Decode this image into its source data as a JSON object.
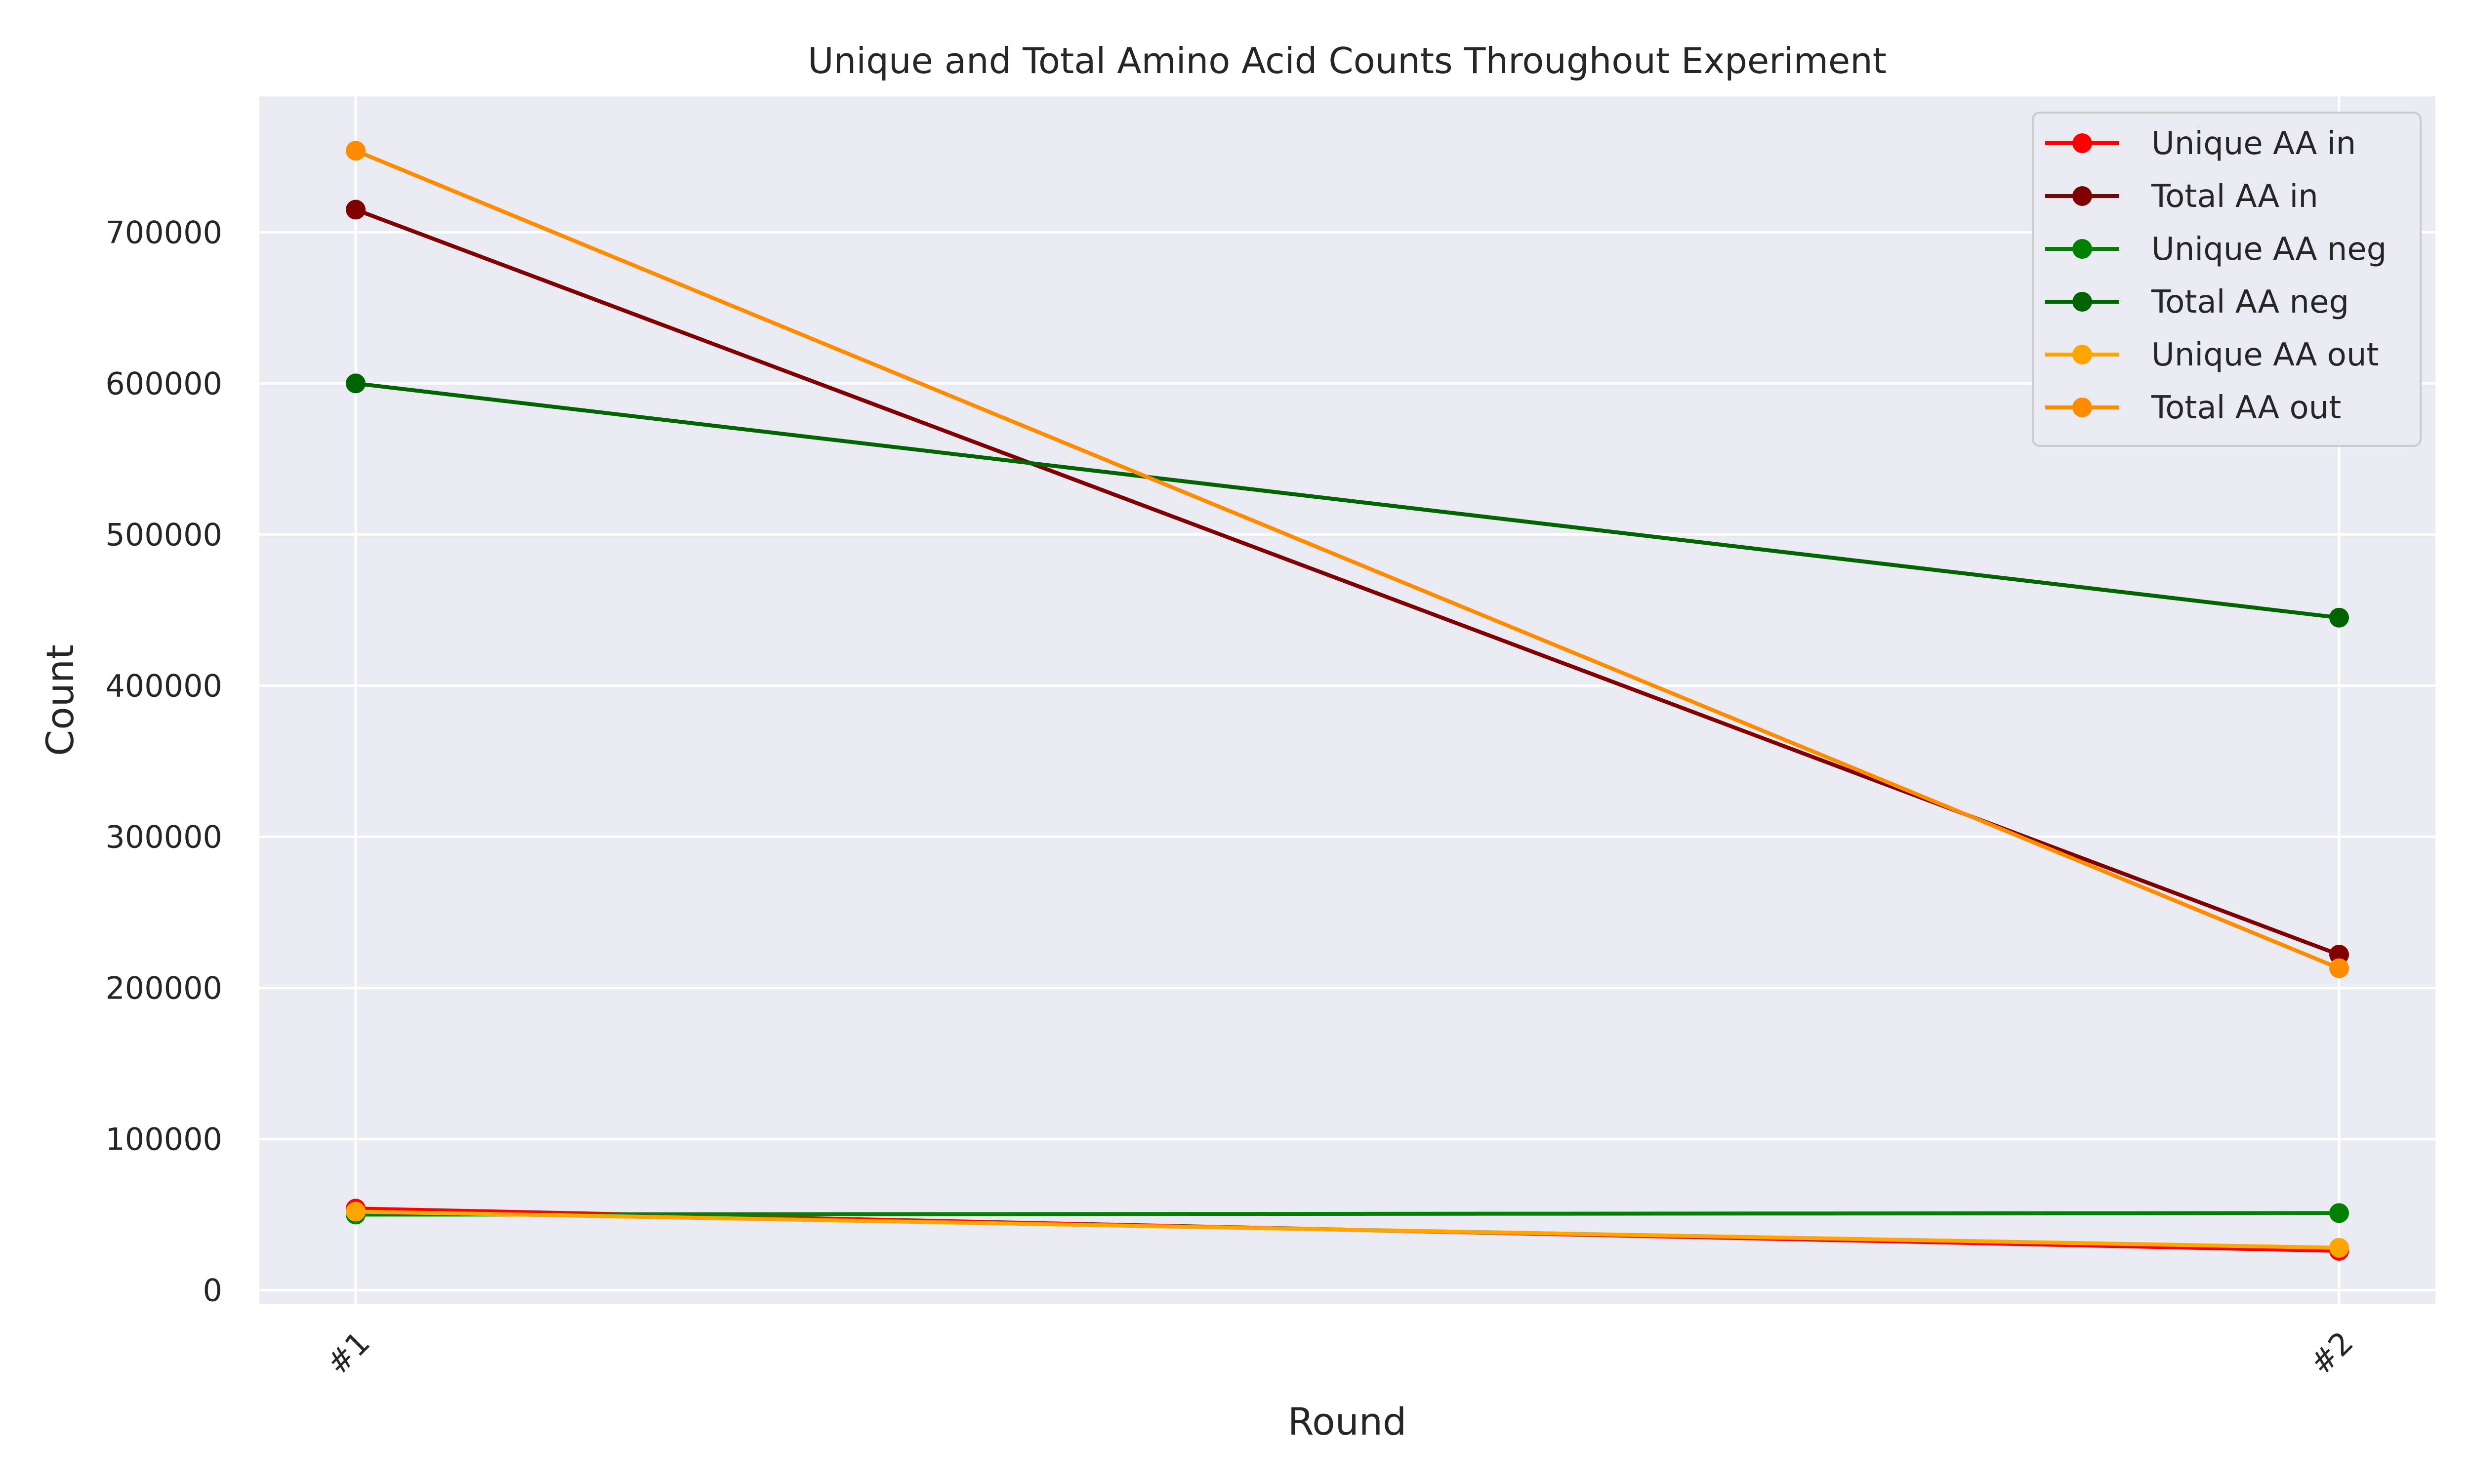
{
  "chart_data": {
    "type": "line",
    "title": "Unique and Total Amino Acid Counts Throughout Experiment",
    "xlabel": "Round",
    "ylabel": "Count",
    "categories": [
      "#1",
      "#2"
    ],
    "ylim": [
      -9000,
      790000
    ],
    "yticks": [
      0,
      100000,
      200000,
      300000,
      400000,
      500000,
      600000,
      700000
    ],
    "ytick_labels": [
      "0",
      "100000",
      "200000",
      "300000",
      "400000",
      "500000",
      "600000",
      "700000"
    ],
    "grid": true,
    "legend_position": "top-right",
    "background_color": "#eaeaf2",
    "grid_color": "#ffffff",
    "series": [
      {
        "name": "Unique AA in",
        "color": "#ff0000",
        "values": [
          54000,
          26000
        ]
      },
      {
        "name": "Total AA in",
        "color": "#800000",
        "values": [
          715000,
          222000
        ]
      },
      {
        "name": "Unique AA neg",
        "color": "#008000",
        "values": [
          50000,
          51000
        ]
      },
      {
        "name": "Total AA neg",
        "color": "#006400",
        "values": [
          600000,
          445000
        ]
      },
      {
        "name": "Unique AA out",
        "color": "#ffa500",
        "values": [
          52000,
          28000
        ]
      },
      {
        "name": "Total AA out",
        "color": "#ff8c00",
        "values": [
          754000,
          213000
        ]
      }
    ]
  }
}
